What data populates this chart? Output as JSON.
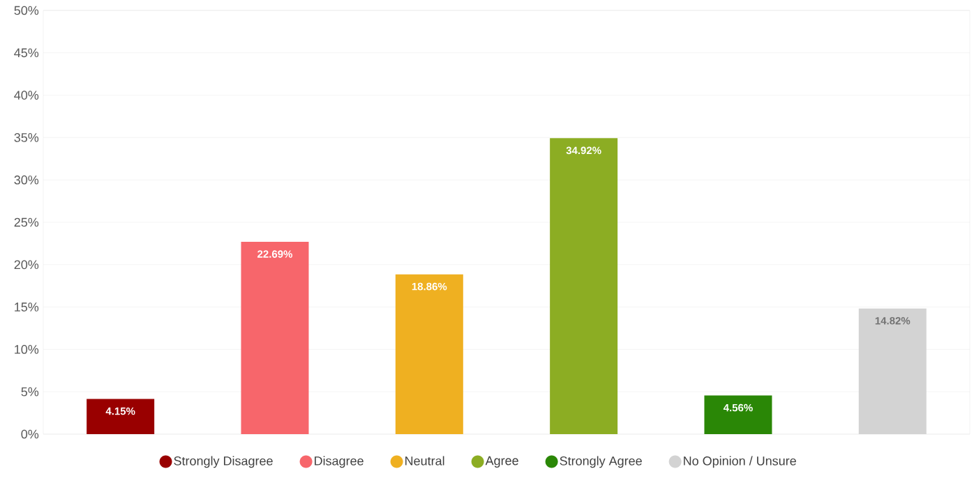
{
  "chart_data": {
    "type": "bar",
    "categories": [
      null,
      null,
      null,
      null,
      null,
      null
    ],
    "series": [
      {
        "name": "Strongly Disagree",
        "color": "#990000",
        "values": [
          4.15,
          null,
          null,
          null,
          null,
          null
        ],
        "value_labels": [
          "4.15%",
          null,
          null,
          null,
          null,
          null
        ]
      },
      {
        "name": "Disagree",
        "color": "#f7666b",
        "values": [
          null,
          22.69,
          null,
          null,
          null,
          null
        ],
        "value_labels": [
          null,
          "22.69%",
          null,
          null,
          null,
          null
        ]
      },
      {
        "name": "Neutral",
        "color": "#efb021",
        "values": [
          null,
          null,
          18.86,
          null,
          null,
          null
        ],
        "value_labels": [
          null,
          null,
          "18.86%",
          null,
          null,
          null
        ]
      },
      {
        "name": "Agree",
        "color": "#8cad23",
        "values": [
          null,
          null,
          null,
          34.92,
          null,
          null
        ],
        "value_labels": [
          null,
          null,
          null,
          "34.92%",
          null,
          null
        ]
      },
      {
        "name": "Strongly Agree",
        "color": "#2a8706",
        "values": [
          null,
          null,
          null,
          null,
          4.56,
          null
        ],
        "value_labels": [
          null,
          null,
          null,
          null,
          "4.56%",
          null
        ]
      },
      {
        "name": "No Opinion / Unsure",
        "color": "#d3d3d3",
        "values": [
          null,
          null,
          null,
          null,
          null,
          14.82
        ],
        "value_labels": [
          null,
          null,
          null,
          null,
          null,
          "14.82%"
        ]
      }
    ],
    "ylim": [
      0,
      50
    ],
    "yticks": [
      {
        "value": 0,
        "label": "0%"
      },
      {
        "value": 5,
        "label": "5%"
      },
      {
        "value": 10,
        "label": "10%"
      },
      {
        "value": 15,
        "label": "15%"
      },
      {
        "value": 20,
        "label": "20%"
      },
      {
        "value": 25,
        "label": "25%"
      },
      {
        "value": 30,
        "label": "30%"
      },
      {
        "value": 35,
        "label": "35%"
      },
      {
        "value": 40,
        "label": "40%"
      },
      {
        "value": 45,
        "label": "45%"
      },
      {
        "value": 50,
        "label": "50%"
      }
    ],
    "grid": "y",
    "legend": "bottom",
    "tick_labels": "y"
  }
}
